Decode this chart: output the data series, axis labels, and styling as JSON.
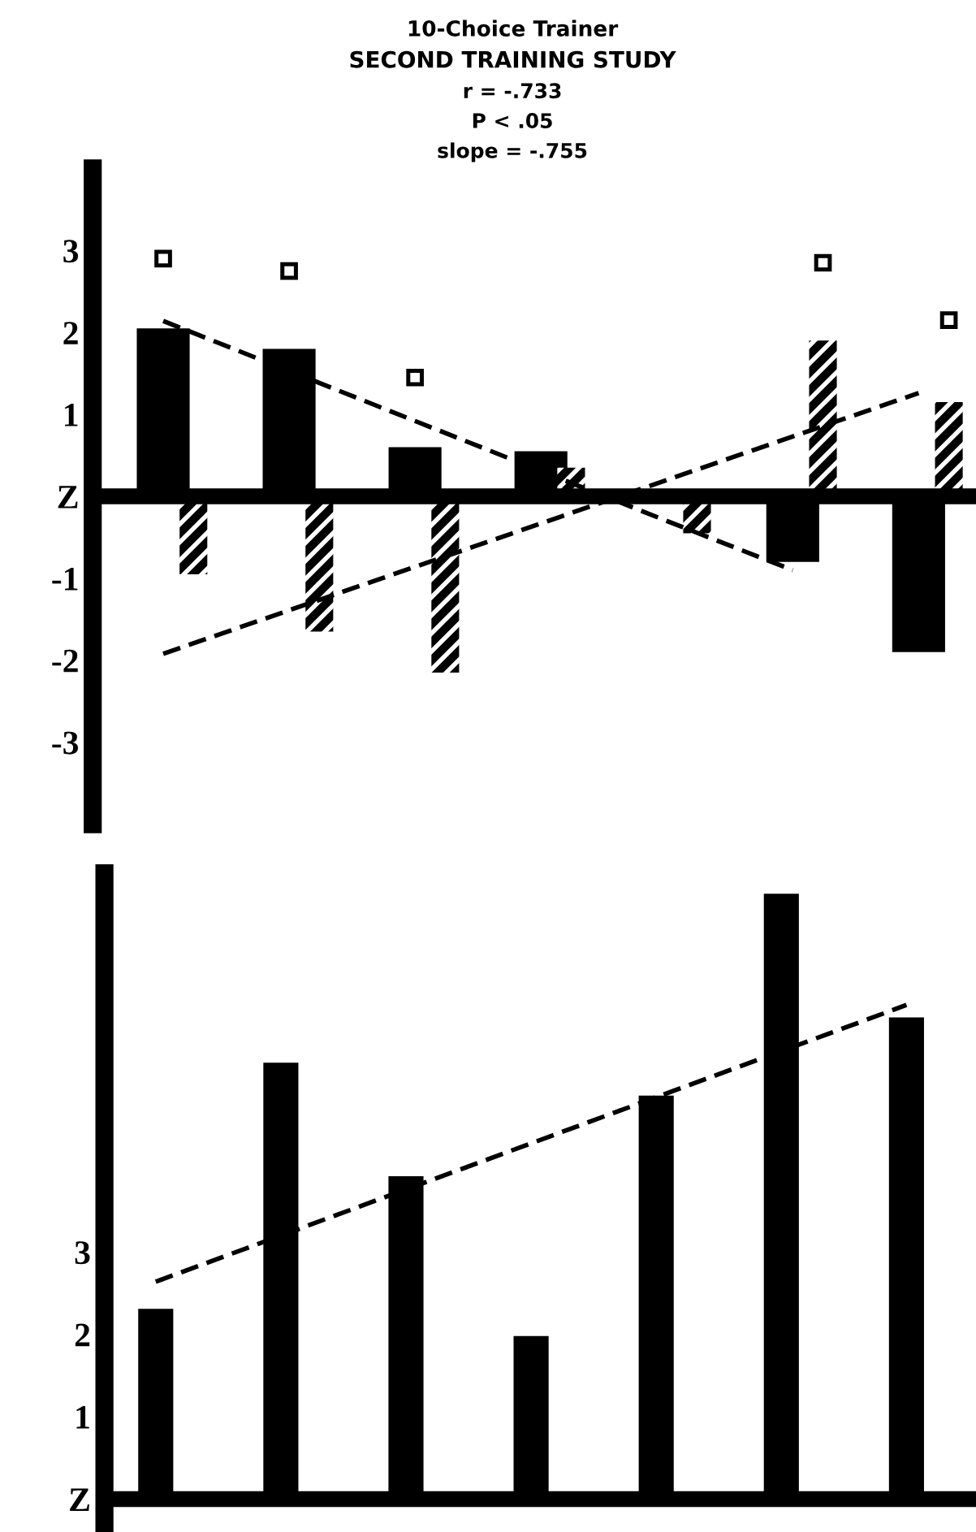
{
  "chart_data": [
    {
      "type": "bar",
      "title": "10-Choice Trainer",
      "subtitle": "SECOND TRAINING STUDY",
      "annotations": [
        "r = -.733",
        "P < .05",
        "slope = -.755"
      ],
      "categories": [
        null,
        null,
        null,
        null,
        null,
        null,
        null
      ],
      "series": [
        {
          "color": "#000000",
          "values": [
            2.05,
            1.8,
            0.6,
            0.55,
            null,
            -0.8,
            -1.9
          ]
        },
        {
          "color": "#000000",
          "values": [
            -0.95,
            -1.65,
            -2.15,
            0.35,
            -0.45,
            1.9,
            1.15
          ]
        },
        {
          "type": "scatter",
          "marker": "square",
          "color": "#000000",
          "values": [
            2.9,
            2.75,
            1.45,
            null,
            null,
            2.85,
            2.15
          ]
        },
        {
          "type": "line",
          "line_style": "dashed",
          "color": "#000000",
          "values": [
            2.14,
            1.53,
            0.92,
            0.31,
            -0.3,
            -0.9,
            null
          ]
        },
        {
          "type": "line",
          "line_style": "dashed",
          "color": "#000000",
          "values": [
            -1.92,
            -1.39,
            -0.86,
            -0.33,
            0.2,
            0.73,
            1.26
          ]
        }
      ],
      "ylim": [
        -4,
        4
      ],
      "yticks": [
        3,
        2,
        1,
        {
          "value": 0,
          "label": "Z"
        },
        {
          "value": -1,
          "label": "-1"
        },
        {
          "value": -2,
          "label": "-2"
        },
        {
          "value": -3,
          "label": "-3"
        }
      ],
      "tick_labels": "y",
      "legend": false
    },
    {
      "type": "bar",
      "categories": [
        null,
        null,
        null,
        null,
        null,
        null,
        null
      ],
      "series": [
        {
          "color": "#000000",
          "values": [
            2.31,
            5.3,
            3.92,
            1.98,
            4.9,
            7.35,
            5.85
          ]
        },
        {
          "type": "line",
          "line_style": "dashed",
          "color": "#000000",
          "values": [
            2.64,
            3.2,
            3.76,
            4.32,
            4.88,
            5.44,
            6.0
          ]
        }
      ],
      "ylim": [
        -0.4,
        7.6
      ],
      "yticks": [
        3,
        2,
        1,
        {
          "value": 0,
          "label": "Z"
        }
      ],
      "tick_labels": "y",
      "legend": false
    }
  ]
}
